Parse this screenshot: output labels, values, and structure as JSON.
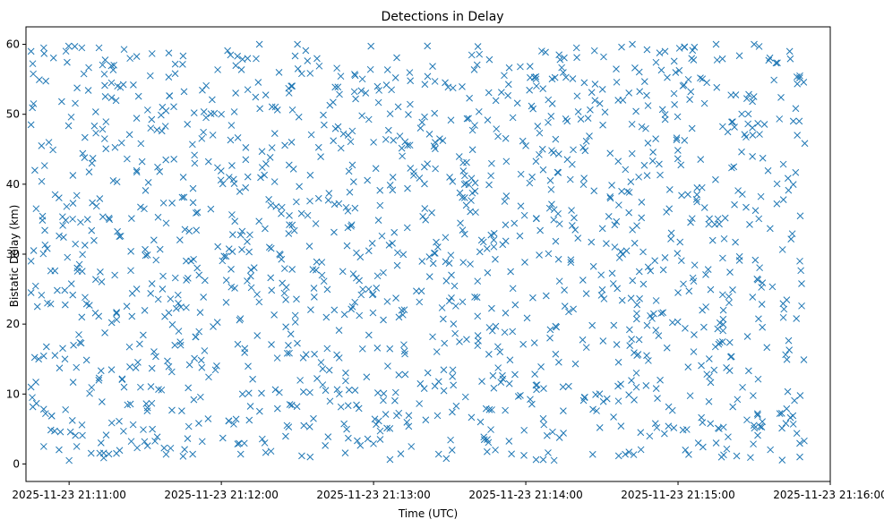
{
  "chart_data": {
    "type": "scatter",
    "title": "Detections in Delay",
    "xlabel": "Time (UTC)",
    "ylabel": "Bistatic Delay (km)",
    "marker": "x",
    "color": "#1f77b4",
    "x_unit": "seconds after 2025-11-23 21:11:00",
    "xlim": [
      -17,
      300
    ],
    "ylim": [
      -2.5,
      62.5
    ],
    "x_ticks": [
      {
        "value": 0,
        "label": "2025-11-23 21:11:00"
      },
      {
        "value": 60,
        "label": "2025-11-23 21:12:00"
      },
      {
        "value": 120,
        "label": "2025-11-23 21:13:00"
      },
      {
        "value": 180,
        "label": "2025-11-23 21:14:00"
      },
      {
        "value": 240,
        "label": "2025-11-23 21:15:00"
      },
      {
        "value": 300,
        "label": "2025-11-23 21:16:00"
      }
    ],
    "y_ticks": [
      {
        "value": 0,
        "label": "0"
      },
      {
        "value": 10,
        "label": "10"
      },
      {
        "value": 20,
        "label": "20"
      },
      {
        "value": 30,
        "label": "30"
      },
      {
        "value": 40,
        "label": "40"
      },
      {
        "value": 50,
        "label": "50"
      },
      {
        "value": 60,
        "label": "60"
      }
    ],
    "series": [
      {
        "name": "detections",
        "x_range": [
          -15,
          290
        ],
        "y_range": [
          0.5,
          59.9
        ],
        "count": 1500,
        "seed": 20251123,
        "points": [
          [
            -15,
            59
          ],
          [
            -15,
            48.5
          ],
          [
            -15,
            11
          ],
          [
            -15,
            29
          ],
          [
            -15,
            24.5
          ],
          [
            -13.5,
            42
          ],
          [
            -13,
            36.5
          ],
          [
            -12.5,
            22.5
          ],
          [
            -12,
            15
          ],
          [
            -10,
            59.5
          ],
          [
            -10,
            2.5
          ],
          [
            0,
            0.5
          ],
          [
            3,
            2.5
          ],
          [
            5,
            59.5
          ],
          [
            5,
            21
          ],
          [
            9,
            43
          ],
          [
            14,
            46.5
          ],
          [
            18,
            27
          ],
          [
            24,
            58
          ],
          [
            32,
            55.5
          ],
          [
            45,
            41
          ],
          [
            60,
            50
          ],
          [
            75,
            60
          ],
          [
            90,
            60
          ],
          [
            95,
            1
          ],
          [
            110,
            47
          ],
          [
            120,
            46
          ],
          [
            130,
            21
          ],
          [
            150,
            41
          ],
          [
            160,
            39
          ],
          [
            168,
            2
          ],
          [
            180,
            45.5
          ],
          [
            200,
            59.5
          ],
          [
            222,
            60
          ],
          [
            240,
            24.5
          ],
          [
            248,
            3
          ],
          [
            255,
            60
          ],
          [
            270,
            60
          ],
          [
            284,
            59
          ],
          [
            287,
            47
          ],
          [
            288,
            55.5
          ],
          [
            288,
            29
          ],
          [
            288,
            1
          ]
        ]
      }
    ]
  }
}
